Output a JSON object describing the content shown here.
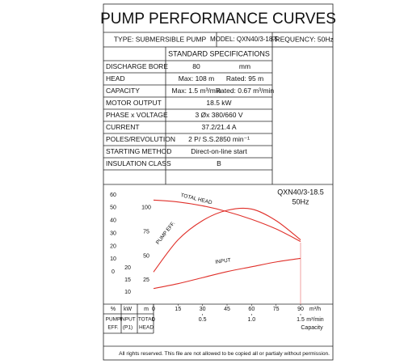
{
  "header": {
    "title": "PUMP PERFORMANCE CURVES",
    "type": "TYPE: SUBMERSIBLE  PUMP",
    "model": "MODEL: QXN40/3-18.5",
    "frequency": "FREQUENCY: 50Hz"
  },
  "specs": {
    "title": "STANDARD SPECIFICATIONS",
    "rows": [
      [
        "DISCHARGE BORE",
        "80",
        "mm"
      ],
      [
        "HEAD",
        "Max: 108 m",
        "Rated: 95 m"
      ],
      [
        "CAPACITY",
        "Max: 1.5 m³/min",
        "Rated: 0.67 m³/min"
      ],
      [
        "MOTOR OUTPUT",
        "18.5  kW"
      ],
      [
        "PHASE x VOLTAGE",
        "3 Øx 380/660 V"
      ],
      [
        "CURRENT",
        "37.2/21.4 A"
      ],
      [
        "POLES/REVOLUTION",
        "2 P/ S.S.2850 min⁻¹"
      ],
      [
        "STARTING METHOD",
        "Direct-on-line start"
      ],
      [
        "INSULATION CLASS",
        "B"
      ]
    ]
  },
  "chart": {
    "type": "line",
    "model": "QXN40/3-18.5",
    "frequency": "50Hz",
    "x": [
      0,
      15,
      30,
      45,
      60,
      75,
      90
    ],
    "xlim": [
      0,
      90
    ],
    "xticks": [
      0,
      15,
      30,
      45,
      60,
      75,
      90
    ],
    "x_unit": "m³/h",
    "x2lim": [
      0,
      1.5
    ],
    "x2ticks": [
      0,
      0.5,
      {
        "value": 1,
        "label": "1.0"
      },
      1.5
    ],
    "x2_unit": "m³/min",
    "x2_label": "Capacity",
    "axes": [
      {
        "unit": "%",
        "label": [
          "PUMP",
          "EFF."
        ],
        "ylim": [
          -25,
          65
        ],
        "yticks": [
          60,
          50,
          40,
          30,
          20,
          10,
          0
        ]
      },
      {
        "unit": "kW",
        "label": [
          "INPUT",
          "(P1)"
        ],
        "ylim": [
          5,
          53
        ],
        "yticks": [
          20,
          15,
          10
        ]
      },
      {
        "unit": "m",
        "label": [
          "TOTAL",
          "HEAD"
        ],
        "ylim": [
          0,
          120
        ],
        "yticks": [
          100,
          75,
          50,
          25
        ]
      }
    ],
    "series": [
      {
        "name": "TOTAL HEAD",
        "color": "#e0302a",
        "axis": 2,
        "values": [
          108,
          106,
          102,
          96,
          88,
          78,
          65
        ]
      },
      {
        "name": "PUMP EFF.",
        "color": "#e0302a",
        "axis": 0,
        "values": [
          0,
          25,
          40,
          48,
          49,
          40,
          25
        ]
      },
      {
        "name": "INPUT",
        "color": "#e0302a",
        "axis": 1,
        "values": [
          11.5,
          13.5,
          16,
          18.5,
          20.5,
          22.5,
          24
        ]
      }
    ]
  },
  "footer": "All rights reserved. This file are not allowed to be copied all or partialy without permission."
}
